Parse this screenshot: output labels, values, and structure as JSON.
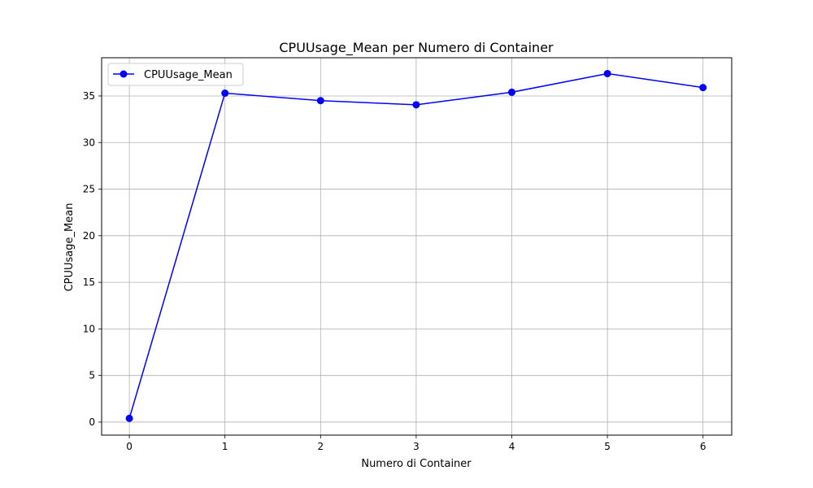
{
  "chart_data": {
    "type": "line",
    "title": "CPUUsage_Mean per Numero di Container",
    "xlabel": "Numero di Container",
    "ylabel": "CPUUsage_Mean",
    "x": [
      0,
      1,
      2,
      3,
      4,
      5,
      6
    ],
    "xlim": [
      -0.29,
      6.3
    ],
    "ylim": [
      -1.4,
      39.1
    ],
    "xticks": [
      "0",
      "1",
      "2",
      "3",
      "4",
      "5",
      "6"
    ],
    "yticks": [
      "0",
      "5",
      "10",
      "15",
      "20",
      "25",
      "30",
      "35"
    ],
    "grid": true,
    "legend_position": "upper-left",
    "series": [
      {
        "name": "CPUUsage_Mean",
        "color": "#0000ff",
        "marker": "circle",
        "values": [
          0.4,
          35.3,
          34.5,
          34.05,
          35.4,
          37.4,
          35.9
        ]
      }
    ]
  }
}
